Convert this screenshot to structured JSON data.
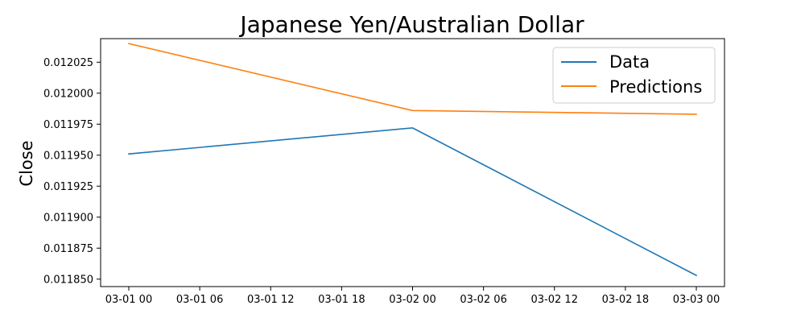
{
  "chart_data": {
    "type": "line",
    "title": "Japanese Yen/Australian Dollar",
    "xlabel": "",
    "ylabel": "Close",
    "x": [
      "2023-03-01 00:00",
      "2023-03-02 00:00",
      "2023-03-03 00:00"
    ],
    "x_ticks": [
      "03-01 00",
      "03-01 06",
      "03-01 12",
      "03-01 18",
      "03-02 00",
      "03-02 06",
      "03-02 12",
      "03-02 18",
      "03-03 00"
    ],
    "y_ticks": [
      "0.011850",
      "0.011875",
      "0.011900",
      "0.011925",
      "0.011950",
      "0.011975",
      "0.012000",
      "0.012025"
    ],
    "ylim": [
      0.011844,
      0.012044
    ],
    "grid": false,
    "legend_position": "top-right",
    "series": [
      {
        "name": "Data",
        "color": "#1f77b4",
        "values": [
          0.011951,
          0.011972,
          0.011853
        ]
      },
      {
        "name": "Predictions",
        "color": "#ff7f0e",
        "values": [
          0.01204,
          0.011986,
          0.011983
        ]
      }
    ]
  }
}
